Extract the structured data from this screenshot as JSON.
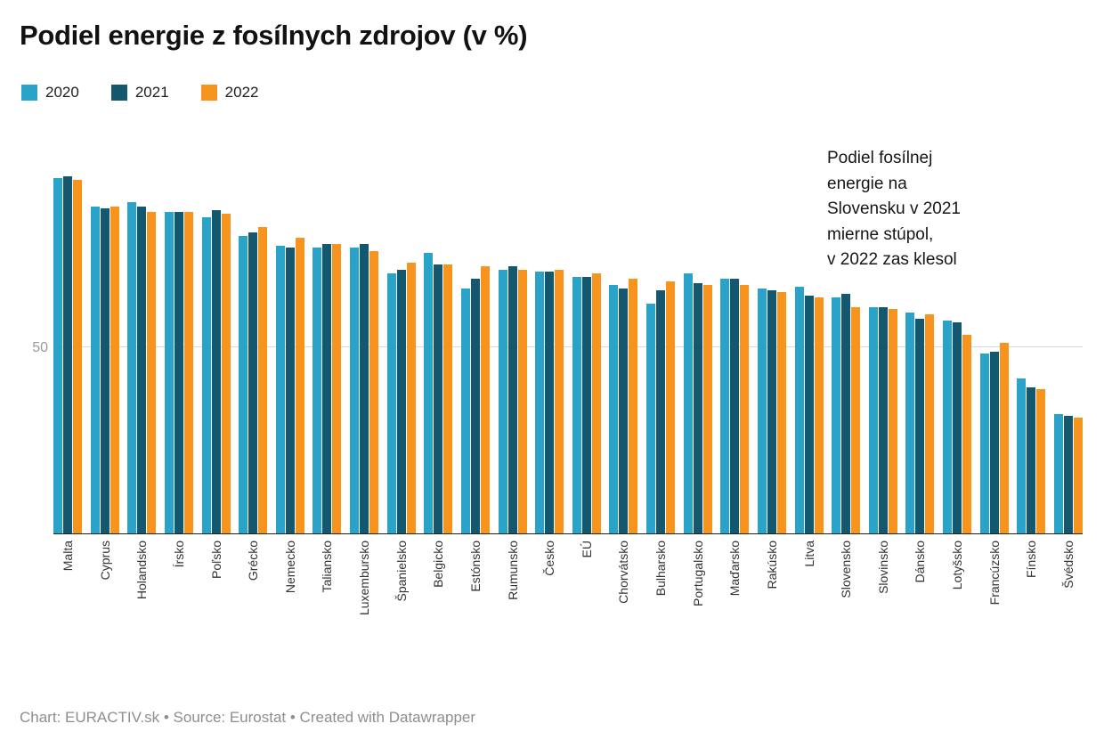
{
  "title": "Podiel energie z fosílnych zdrojov (v %)",
  "legend": [
    {
      "label": "2020",
      "color": "#2aa3c9"
    },
    {
      "label": "2021",
      "color": "#14586f"
    },
    {
      "label": "2022",
      "color": "#f7941d"
    }
  ],
  "annotation": "Podiel fosílnej\nenergie na\nSlovensku v 2021\nmierne stúpol,\nv 2022 zas klesol",
  "footer": "Chart: EURACTIV.sk • Source: Eurostat • Created with Datawrapper",
  "chart_data": {
    "type": "bar",
    "title": "Podiel energie z fosílnych zdrojov (v %)",
    "categories": [
      "Malta",
      "Cyprus",
      "Holandsko",
      "Írsko",
      "Poľsko",
      "Grécko",
      "Nemecko",
      "Taliansko",
      "Luxembursko",
      "Španielsko",
      "Belgicko",
      "Estónsko",
      "Rumunsko",
      "Česko",
      "EÚ",
      "Chorvátsko",
      "Bulharsko",
      "Portugalsko",
      "Maďarsko",
      "Rakúsko",
      "Litva",
      "Slovensko",
      "Slovinsko",
      "Dánsko",
      "Lotyšsko",
      "Francúzsko",
      "Fínsko",
      "Švédsko"
    ],
    "series": [
      {
        "name": "2020",
        "color": "#2aa3c9",
        "values": [
          95,
          87.5,
          88.5,
          86,
          84.5,
          79.5,
          77,
          76.5,
          76.5,
          69.5,
          75,
          65.5,
          70.5,
          70,
          68.5,
          66.5,
          61.5,
          69.5,
          68,
          65.5,
          66,
          63,
          60.5,
          59,
          57,
          48,
          41.5,
          32
        ]
      },
      {
        "name": "2021",
        "color": "#14586f",
        "values": [
          95.5,
          87,
          87.5,
          86,
          86.5,
          80.5,
          76.5,
          77.5,
          77.5,
          70.5,
          72,
          68,
          71.5,
          70,
          68.5,
          65.5,
          65,
          67,
          68,
          65,
          63.5,
          64,
          60.5,
          57.5,
          56.5,
          48.5,
          39,
          31.5
        ]
      },
      {
        "name": "2022",
        "color": "#f7941d",
        "values": [
          94.5,
          87.5,
          86,
          86,
          85.5,
          82,
          79,
          77.5,
          75.5,
          72.5,
          72,
          71.5,
          70.5,
          70.5,
          69.5,
          68,
          67.5,
          66.5,
          66.5,
          64.5,
          63,
          60.5,
          60,
          58.5,
          53,
          51,
          38.5,
          31
        ]
      }
    ],
    "ylim": [
      0,
      109
    ],
    "yticks": [
      50
    ],
    "grid": "y",
    "legend_position": "top-left",
    "xlabel": "",
    "ylabel": ""
  }
}
